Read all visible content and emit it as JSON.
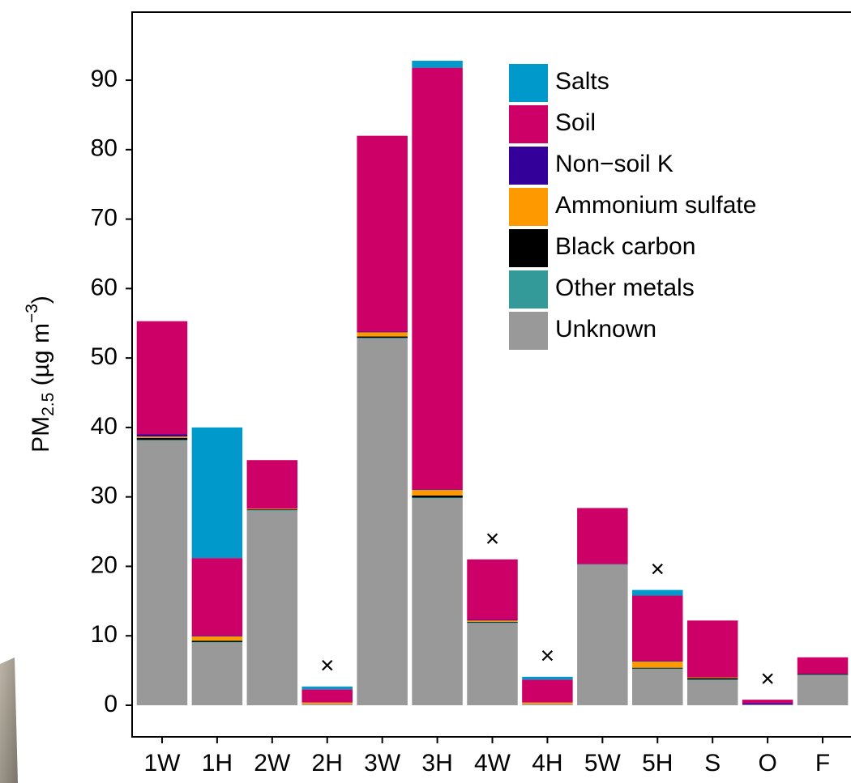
{
  "chart_data": {
    "type": "stacked-bar",
    "y_label_parts": [
      "PM",
      "2.5",
      " (µg m",
      "−3",
      ")"
    ],
    "categories": [
      "1W",
      "1H",
      "2W",
      "2H",
      "3W",
      "3H",
      "4W",
      "4H",
      "5W",
      "5H",
      "S",
      "O",
      "F"
    ],
    "series": [
      {
        "name": "Salts",
        "color": "#0099cc",
        "values": [
          0,
          18.8,
          0,
          0.4,
          0,
          1.0,
          0,
          0.4,
          0,
          0.8,
          0,
          0,
          0
        ]
      },
      {
        "name": "Soil",
        "color": "#cc0066",
        "values": [
          16.3,
          11.2,
          7.0,
          1.9,
          28.2,
          60.7,
          8.7,
          3.3,
          8.1,
          9.4,
          8.2,
          0.5,
          2.4
        ]
      },
      {
        "name": "Non−soil K",
        "color": "#330099",
        "values": [
          0.3,
          0.1,
          0,
          0,
          0.1,
          0.1,
          0.1,
          0,
          0,
          0.1,
          0,
          0.2,
          0
        ]
      },
      {
        "name": "Ammonium sulfate",
        "color": "#ff9900",
        "values": [
          0.2,
          0.6,
          0.1,
          0.2,
          0.6,
          0.8,
          0.2,
          0.2,
          0,
          0.9,
          0.1,
          0,
          0
        ]
      },
      {
        "name": "Black carbon",
        "color": "#000000",
        "values": [
          0.3,
          0.2,
          0.1,
          0,
          0.2,
          0.3,
          0.1,
          0,
          0,
          0.1,
          0.2,
          0,
          0.1
        ]
      },
      {
        "name": "Other metals",
        "color": "#339999",
        "values": [
          0.1,
          0.1,
          0.1,
          0,
          0.1,
          0.1,
          0.1,
          0,
          0.1,
          0.1,
          0.1,
          0,
          0.1
        ]
      },
      {
        "name": "Unknown",
        "color": "#999999",
        "values": [
          38.1,
          9.0,
          28.0,
          0.2,
          52.8,
          29.8,
          11.8,
          0.2,
          20.2,
          5.2,
          3.6,
          0.1,
          4.3
        ]
      }
    ],
    "annotations": [
      {
        "text": "×",
        "category": "2H"
      },
      {
        "text": "×",
        "category": "4W"
      },
      {
        "text": "×",
        "category": "4H"
      },
      {
        "text": "×",
        "category": "5H"
      },
      {
        "text": "×",
        "category": "O"
      }
    ],
    "ylim": [
      -4.55,
      99.8
    ],
    "yticks": [
      0,
      10,
      20,
      30,
      40,
      50,
      60,
      70,
      80,
      90
    ],
    "grid": false,
    "legend": "top-right"
  }
}
